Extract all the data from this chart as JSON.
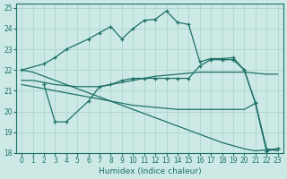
{
  "xlabel": "Humidex (Indice chaleur)",
  "xlim": [
    -0.5,
    23.5
  ],
  "ylim": [
    18,
    25.2
  ],
  "xticks": [
    0,
    1,
    2,
    3,
    4,
    5,
    6,
    7,
    8,
    9,
    10,
    11,
    12,
    13,
    14,
    15,
    16,
    17,
    18,
    19,
    20,
    21,
    22,
    23
  ],
  "yticks": [
    18,
    19,
    20,
    21,
    22,
    23,
    24,
    25
  ],
  "bg_color": "#cce9e5",
  "line_color": "#1e7068",
  "grid_color": "#b0d8d3",
  "lines": [
    {
      "x": [
        0,
        2,
        3,
        4,
        6,
        7,
        8,
        9,
        10,
        11,
        12,
        13,
        14,
        15,
        16,
        17,
        18,
        19,
        20,
        21,
        22,
        23
      ],
      "y": [
        22.0,
        22.3,
        22.6,
        23.0,
        23.5,
        23.8,
        24.1,
        23.5,
        24.0,
        24.4,
        24.45,
        24.85,
        24.3,
        24.2,
        22.4,
        22.55,
        22.55,
        22.6,
        22.0,
        20.4,
        18.1,
        18.2
      ],
      "marker": true
    },
    {
      "x": [
        0,
        1,
        2,
        3,
        4,
        5,
        6,
        7,
        8,
        9,
        10,
        11,
        12,
        13,
        14,
        15,
        16,
        17,
        18,
        19,
        20,
        21,
        22,
        23
      ],
      "y": [
        21.5,
        21.5,
        21.4,
        21.3,
        21.25,
        21.2,
        21.2,
        21.2,
        21.3,
        21.4,
        21.5,
        21.6,
        21.7,
        21.75,
        21.8,
        21.85,
        21.9,
        21.9,
        21.9,
        21.9,
        21.9,
        21.85,
        21.8,
        21.8
      ],
      "marker": false
    },
    {
      "x": [
        0,
        1,
        2,
        3,
        4,
        5,
        6,
        7,
        8,
        9,
        10,
        11,
        12,
        13,
        14,
        15,
        16,
        17,
        18,
        19,
        20,
        21,
        22,
        23
      ],
      "y": [
        21.3,
        21.2,
        21.1,
        21.0,
        20.9,
        20.8,
        20.7,
        20.6,
        20.5,
        20.4,
        20.3,
        20.25,
        20.2,
        20.15,
        20.1,
        20.1,
        20.1,
        20.1,
        20.1,
        20.1,
        20.1,
        20.4,
        18.2,
        18.1
      ],
      "marker": false
    },
    {
      "x": [
        0,
        1,
        2,
        3,
        4,
        5,
        6,
        7,
        8,
        9,
        10,
        11,
        12,
        13,
        14,
        15,
        16,
        17,
        18,
        19,
        20,
        21,
        22,
        23
      ],
      "y": [
        22.0,
        21.9,
        21.7,
        21.5,
        21.3,
        21.1,
        20.9,
        20.7,
        20.5,
        20.3,
        20.1,
        19.9,
        19.7,
        19.5,
        19.3,
        19.1,
        18.9,
        18.7,
        18.5,
        18.35,
        18.2,
        18.1,
        18.15,
        18.2
      ],
      "marker": false
    },
    {
      "x": [
        2,
        3,
        4,
        6,
        7,
        8,
        9,
        10,
        11,
        12,
        13,
        14,
        15,
        16,
        17,
        18,
        19,
        20,
        21,
        22,
        23
      ],
      "y": [
        21.3,
        19.5,
        19.5,
        20.5,
        21.2,
        21.3,
        21.5,
        21.6,
        21.6,
        21.6,
        21.6,
        21.6,
        21.6,
        22.2,
        22.5,
        22.5,
        22.5,
        22.0,
        20.4,
        18.1,
        18.2
      ],
      "marker": true
    }
  ]
}
